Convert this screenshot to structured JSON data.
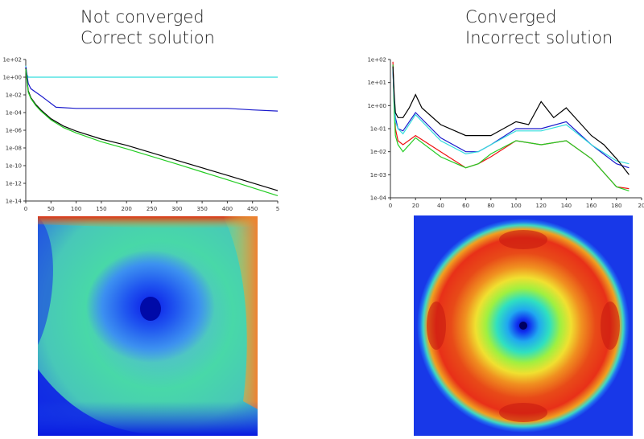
{
  "headings": {
    "left": {
      "line1": "Not converged",
      "line2": "Correct solution"
    },
    "right": {
      "line1": "Converged",
      "line2": "Incorrect solution"
    }
  },
  "chart_data": [
    {
      "type": "line",
      "title": "",
      "xlabel": "",
      "ylabel": "",
      "yscale": "log",
      "xlim": [
        0,
        500
      ],
      "ylim": [
        1e-14,
        100
      ],
      "x_ticks": [
        "0",
        "50",
        "100",
        "150",
        "200",
        "250",
        "300",
        "350",
        "400",
        "450",
        "5"
      ],
      "y_ticks": [
        "1e+02",
        "1e+00",
        "1e-02",
        "1e-04",
        "1e-06",
        "1e-08",
        "1e-10",
        "1e-12",
        "1e-14"
      ],
      "grid": false,
      "legend": "none",
      "series": [
        {
          "color": "#33dddd",
          "x": [
            0,
            2,
            5,
            500
          ],
          "y": [
            20,
            2,
            1.0,
            1.0
          ]
        },
        {
          "color": "#1a1acc",
          "x": [
            0,
            5,
            10,
            20,
            30,
            40,
            60,
            100,
            200,
            400,
            450,
            500
          ],
          "y": [
            15,
            0.2,
            0.05,
            0.02,
            0.008,
            0.003,
            0.0004,
            0.0003,
            0.0003,
            0.0003,
            0.0002,
            0.00015
          ]
        },
        {
          "color": "#000000",
          "x": [
            0,
            5,
            10,
            20,
            30,
            50,
            75,
            100,
            150,
            200,
            300,
            400,
            500
          ],
          "y": [
            10,
            0.03,
            0.005,
            0.0008,
            0.0002,
            2e-05,
            3e-06,
            8e-07,
            1e-07,
            2e-08,
            4e-10,
            8e-12,
            1.5e-13
          ]
        },
        {
          "color": "#22cc22",
          "x": [
            0,
            5,
            10,
            20,
            30,
            50,
            75,
            100,
            150,
            200,
            300,
            400,
            500
          ],
          "y": [
            8,
            0.02,
            0.004,
            0.0006,
            0.00015,
            1.5e-05,
            2e-06,
            5e-07,
            5e-08,
            8e-09,
            1.5e-10,
            2.5e-12,
            4e-14
          ]
        }
      ]
    },
    {
      "type": "line",
      "title": "",
      "xlabel": "",
      "ylabel": "",
      "yscale": "log",
      "xlim": [
        0,
        200
      ],
      "ylim": [
        0.0001,
        100
      ],
      "x_ticks": [
        "0",
        "20",
        "40",
        "60",
        "80",
        "100",
        "120",
        "140",
        "160",
        "180",
        "20"
      ],
      "y_ticks": [
        "1e+02",
        "1e+01",
        "1e+00",
        "1e-01",
        "1e-02",
        "1e-03",
        "1e-04"
      ],
      "grid": false,
      "legend": "none",
      "series": [
        {
          "color": "#ee1111",
          "x": [
            2,
            3,
            4,
            6,
            10,
            20,
            40,
            60,
            70,
            80,
            100,
            120,
            140,
            160,
            180,
            190
          ],
          "y": [
            80,
            1,
            0.1,
            0.03,
            0.02,
            0.05,
            0.01,
            0.002,
            0.003,
            0.006,
            0.03,
            0.02,
            0.03,
            0.005,
            0.0003,
            0.00025
          ]
        },
        {
          "color": "#22cc22",
          "x": [
            2,
            3,
            4,
            6,
            10,
            20,
            40,
            60,
            70,
            80,
            100,
            120,
            140,
            160,
            180,
            190
          ],
          "y": [
            60,
            0.5,
            0.05,
            0.02,
            0.01,
            0.04,
            0.006,
            0.002,
            0.003,
            0.008,
            0.03,
            0.02,
            0.03,
            0.005,
            0.0003,
            0.0002
          ]
        },
        {
          "color": "#1a1acc",
          "x": [
            2,
            3,
            4,
            6,
            10,
            20,
            40,
            60,
            70,
            80,
            100,
            120,
            140,
            160,
            180,
            190
          ],
          "y": [
            30,
            2,
            0.3,
            0.1,
            0.08,
            0.5,
            0.04,
            0.01,
            0.01,
            0.02,
            0.1,
            0.1,
            0.2,
            0.02,
            0.003,
            0.002
          ]
        },
        {
          "color": "#33dddd",
          "x": [
            2,
            3,
            4,
            6,
            10,
            20,
            40,
            60,
            70,
            80,
            100,
            120,
            140,
            160,
            180,
            190
          ],
          "y": [
            40,
            1.5,
            0.2,
            0.1,
            0.06,
            0.4,
            0.03,
            0.008,
            0.01,
            0.02,
            0.08,
            0.08,
            0.15,
            0.02,
            0.004,
            0.003
          ]
        },
        {
          "color": "#000000",
          "x": [
            2,
            3,
            4,
            6,
            10,
            15,
            20,
            25,
            40,
            60,
            70,
            80,
            90,
            100,
            110,
            120,
            130,
            140,
            150,
            160,
            170,
            180,
            190
          ],
          "y": [
            50,
            3,
            0.5,
            0.3,
            0.3,
            0.8,
            3,
            0.8,
            0.15,
            0.05,
            0.05,
            0.05,
            0.1,
            0.2,
            0.15,
            1.5,
            0.3,
            0.8,
            0.2,
            0.05,
            0.02,
            0.005,
            0.001
          ]
        }
      ]
    }
  ]
}
